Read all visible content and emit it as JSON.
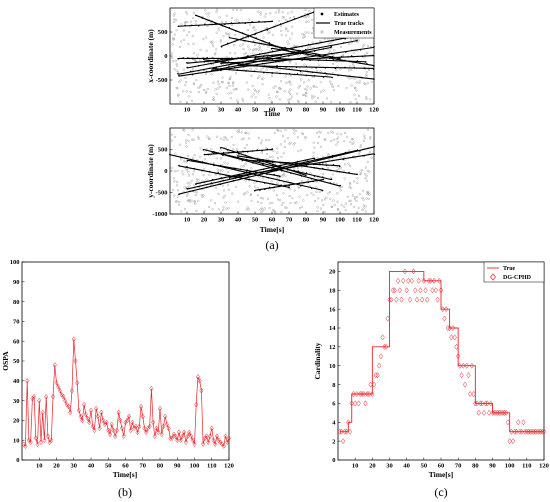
{
  "chart_data": [
    {
      "panel": "a-top",
      "type": "line",
      "xlabel": "Time",
      "ylabel": "x-coordinate (m)",
      "xlim": [
        0,
        120
      ],
      "ylim": [
        -1000,
        1000
      ],
      "xticks": [
        10,
        20,
        30,
        40,
        50,
        60,
        70,
        80,
        90,
        100,
        110,
        120
      ],
      "yticks": [
        -500,
        0,
        500
      ],
      "legend": [
        "Estimates",
        "True tracks",
        "Measurements"
      ],
      "legend_position": "top-right",
      "tracks": [
        {
          "x": [
            5,
            120
          ],
          "y": [
            -420,
            180
          ]
        },
        {
          "x": [
            5,
            110
          ],
          "y": [
            -380,
            320
          ]
        },
        {
          "x": [
            10,
            110
          ],
          "y": [
            -250,
            420
          ]
        },
        {
          "x": [
            30,
            120
          ],
          "y": [
            -150,
            10
          ]
        },
        {
          "x": [
            20,
            120
          ],
          "y": [
            -80,
            -480
          ]
        },
        {
          "x": [
            25,
            95
          ],
          "y": [
            -300,
            180
          ]
        },
        {
          "x": [
            30,
            85
          ],
          "y": [
            200,
            920
          ]
        },
        {
          "x": [
            5,
            60
          ],
          "y": [
            620,
            720
          ]
        },
        {
          "x": [
            10,
            80
          ],
          "y": [
            -150,
            80
          ]
        },
        {
          "x": [
            15,
            70
          ],
          "y": [
            850,
            100
          ]
        },
        {
          "x": [
            25,
            95
          ],
          "y": [
            -260,
            -440
          ]
        },
        {
          "x": [
            50,
            115
          ],
          "y": [
            -40,
            -120
          ]
        },
        {
          "x": [
            35,
            100
          ],
          "y": [
            380,
            -50
          ]
        },
        {
          "x": [
            5,
            45
          ],
          "y": [
            -50,
            -50
          ]
        },
        {
          "x": [
            60,
            120
          ],
          "y": [
            160,
            -200
          ]
        },
        {
          "x": [
            40,
            120
          ],
          "y": [
            -200,
            -260
          ]
        }
      ]
    },
    {
      "panel": "a-bottom",
      "type": "line",
      "xlabel": "Time[s]",
      "ylabel": "y-coordinate (m)",
      "xlim": [
        0,
        120
      ],
      "ylim": [
        -1000,
        1000
      ],
      "xticks": [
        10,
        20,
        30,
        40,
        50,
        60,
        70,
        80,
        90,
        100,
        110,
        120
      ],
      "yticks": [
        -1000,
        -500,
        0,
        500
      ],
      "tracks": [
        {
          "x": [
            0,
            90
          ],
          "y": [
            380,
            -450
          ]
        },
        {
          "x": [
            5,
            120
          ],
          "y": [
            -540,
            560
          ]
        },
        {
          "x": [
            10,
            110
          ],
          "y": [
            -420,
            480
          ]
        },
        {
          "x": [
            20,
            100
          ],
          "y": [
            500,
            -350
          ]
        },
        {
          "x": [
            25,
            95
          ],
          "y": [
            450,
            -200
          ]
        },
        {
          "x": [
            30,
            80
          ],
          "y": [
            550,
            -100
          ]
        },
        {
          "x": [
            15,
            85
          ],
          "y": [
            -300,
            300
          ]
        },
        {
          "x": [
            40,
            110
          ],
          "y": [
            350,
            -80
          ]
        },
        {
          "x": [
            5,
            70
          ],
          "y": [
            120,
            -380
          ]
        },
        {
          "x": [
            35,
            120
          ],
          "y": [
            -150,
            400
          ]
        },
        {
          "x": [
            45,
            100
          ],
          "y": [
            250,
            120
          ]
        },
        {
          "x": [
            20,
            60
          ],
          "y": [
            380,
            500
          ]
        },
        {
          "x": [
            50,
            90
          ],
          "y": [
            -450,
            -200
          ]
        },
        {
          "x": [
            10,
            65
          ],
          "y": [
            250,
            -120
          ]
        }
      ]
    },
    {
      "panel": "b",
      "type": "line",
      "xlabel": "Time[s]",
      "ylabel": "OSPA",
      "xlim": [
        0,
        120
      ],
      "ylim": [
        0,
        100
      ],
      "xticks": [
        10,
        20,
        30,
        40,
        50,
        60,
        70,
        80,
        90,
        100,
        110,
        120
      ],
      "yticks": [
        0,
        10,
        20,
        30,
        40,
        50,
        60,
        70,
        80,
        90,
        100
      ],
      "x": [
        1,
        2,
        3,
        4,
        5,
        6,
        7,
        8,
        9,
        10,
        11,
        12,
        13,
        14,
        15,
        16,
        17,
        18,
        19,
        20,
        21,
        22,
        23,
        24,
        25,
        26,
        27,
        28,
        29,
        30,
        31,
        32,
        33,
        34,
        35,
        36,
        37,
        38,
        39,
        40,
        41,
        42,
        43,
        44,
        45,
        46,
        47,
        48,
        49,
        50,
        51,
        52,
        53,
        54,
        55,
        56,
        57,
        58,
        59,
        60,
        61,
        62,
        63,
        64,
        65,
        66,
        67,
        68,
        69,
        70,
        71,
        72,
        73,
        74,
        75,
        76,
        77,
        78,
        79,
        80,
        81,
        82,
        83,
        84,
        85,
        86,
        87,
        88,
        89,
        90,
        91,
        92,
        93,
        94,
        95,
        96,
        97,
        98,
        99,
        100,
        101,
        102,
        103,
        104,
        105,
        106,
        107,
        108,
        109,
        110,
        111,
        112,
        113,
        114,
        115,
        116,
        117,
        118,
        119,
        120
      ],
      "values": [
        8,
        7,
        40,
        10,
        9,
        31,
        32,
        11,
        8,
        30,
        9,
        24,
        10,
        32,
        12,
        9,
        10,
        32,
        48,
        39,
        37,
        35,
        33,
        32,
        30,
        28,
        27,
        24,
        35,
        61,
        50,
        39,
        25,
        22,
        20,
        28,
        23,
        21,
        19,
        25,
        17,
        15,
        26,
        22,
        16,
        24,
        20,
        18,
        19,
        15,
        13,
        18,
        15,
        12,
        15,
        24,
        20,
        16,
        12,
        19,
        20,
        22,
        15,
        19,
        16,
        17,
        14,
        17,
        27,
        22,
        16,
        14,
        16,
        17,
        36,
        19,
        12,
        16,
        14,
        26,
        13,
        17,
        22,
        18,
        16,
        11,
        11,
        13,
        12,
        10,
        14,
        10,
        12,
        14,
        9,
        12,
        14,
        12,
        10,
        8,
        28,
        42,
        40,
        35,
        8,
        11,
        12,
        9,
        12,
        16,
        10,
        8,
        12,
        10,
        9,
        8,
        7,
        12,
        9,
        11
      ],
      "series": [
        {
          "name": "OSPA",
          "color": "#e8252a"
        }
      ]
    },
    {
      "panel": "c",
      "type": "line",
      "xlabel": "Time[s]",
      "ylabel": "Cardinality",
      "xlim": [
        0,
        120
      ],
      "ylim": [
        0,
        21
      ],
      "xticks": [
        10,
        20,
        30,
        40,
        50,
        60,
        70,
        80,
        90,
        100,
        110,
        120
      ],
      "yticks": [
        0,
        2,
        4,
        6,
        8,
        10,
        12,
        14,
        16,
        18,
        20
      ],
      "legend_position": "top-right",
      "series": [
        {
          "name": "True",
          "color": "#e8252a",
          "steps": [
            [
              1,
              3
            ],
            [
              6,
              4
            ],
            [
              8,
              7
            ],
            [
              20,
              12
            ],
            [
              30,
              20
            ],
            [
              50,
              19
            ],
            [
              60,
              16
            ],
            [
              65,
              14
            ],
            [
              70,
              10
            ],
            [
              80,
              6
            ],
            [
              90,
              5
            ],
            [
              100,
              3
            ],
            [
              120,
              3
            ]
          ]
        },
        {
          "name": "DG-CPHD",
          "color": "#e8252a",
          "x": [
            1,
            2,
            3,
            4,
            5,
            6,
            7,
            8,
            9,
            10,
            11,
            12,
            13,
            14,
            15,
            16,
            17,
            18,
            19,
            20,
            21,
            22,
            23,
            24,
            25,
            26,
            27,
            28,
            29,
            30,
            31,
            32,
            33,
            34,
            35,
            36,
            37,
            38,
            39,
            40,
            41,
            42,
            43,
            44,
            45,
            46,
            47,
            48,
            49,
            50,
            51,
            52,
            53,
            54,
            55,
            56,
            57,
            58,
            59,
            60,
            61,
            62,
            63,
            64,
            65,
            66,
            67,
            68,
            69,
            70,
            71,
            72,
            73,
            74,
            75,
            76,
            77,
            78,
            79,
            80,
            81,
            82,
            83,
            84,
            85,
            86,
            87,
            88,
            89,
            90,
            91,
            92,
            93,
            94,
            95,
            96,
            97,
            98,
            99,
            100,
            101,
            102,
            103,
            104,
            105,
            106,
            107,
            108,
            109,
            110,
            111,
            112,
            113,
            114,
            115,
            116,
            117,
            118,
            119,
            120
          ],
          "values": [
            3,
            3,
            2,
            3,
            3,
            4,
            3,
            6,
            7,
            6,
            7,
            6,
            7,
            7,
            7,
            6,
            7,
            7,
            8,
            7,
            8,
            9,
            9,
            10,
            11,
            13,
            12,
            12,
            15,
            17,
            17,
            18,
            18,
            17,
            19,
            18,
            17,
            19,
            20,
            18,
            19,
            17,
            19,
            20,
            18,
            17,
            19,
            18,
            17,
            19,
            18,
            17,
            19,
            19,
            18,
            19,
            18,
            17,
            19,
            18,
            16,
            15,
            16,
            14,
            14,
            13,
            14,
            13,
            12,
            11,
            10,
            9,
            10,
            8,
            10,
            9,
            7,
            10,
            7,
            6,
            6,
            5,
            6,
            6,
            5,
            6,
            6,
            5,
            6,
            5,
            5,
            5,
            5,
            5,
            5,
            5,
            5,
            5,
            4,
            2,
            3,
            2,
            3,
            3,
            4,
            3,
            3,
            4,
            3,
            3,
            3,
            3,
            3,
            3,
            3,
            3,
            3,
            3,
            3,
            3
          ]
        }
      ]
    }
  ],
  "labels": {
    "a_top_xlabel": "Time",
    "a_top_ylabel": "x-coordinate (m)",
    "a_bottom_xlabel": "Time[s]",
    "a_bottom_ylabel": "y-coordinate (m)",
    "b_xlabel": "Time[s]",
    "b_ylabel": "OSPA",
    "c_xlabel": "Time[s]",
    "c_ylabel": "Cardinality",
    "legend_estimates": "Estimates",
    "legend_true_tracks": "True tracks",
    "legend_measurements": "Measurements",
    "legend_true": "True",
    "legend_dgcphd": "DG-CPHD",
    "caption_a": "(a)",
    "caption_b": "(b)",
    "caption_c": "(c)"
  }
}
